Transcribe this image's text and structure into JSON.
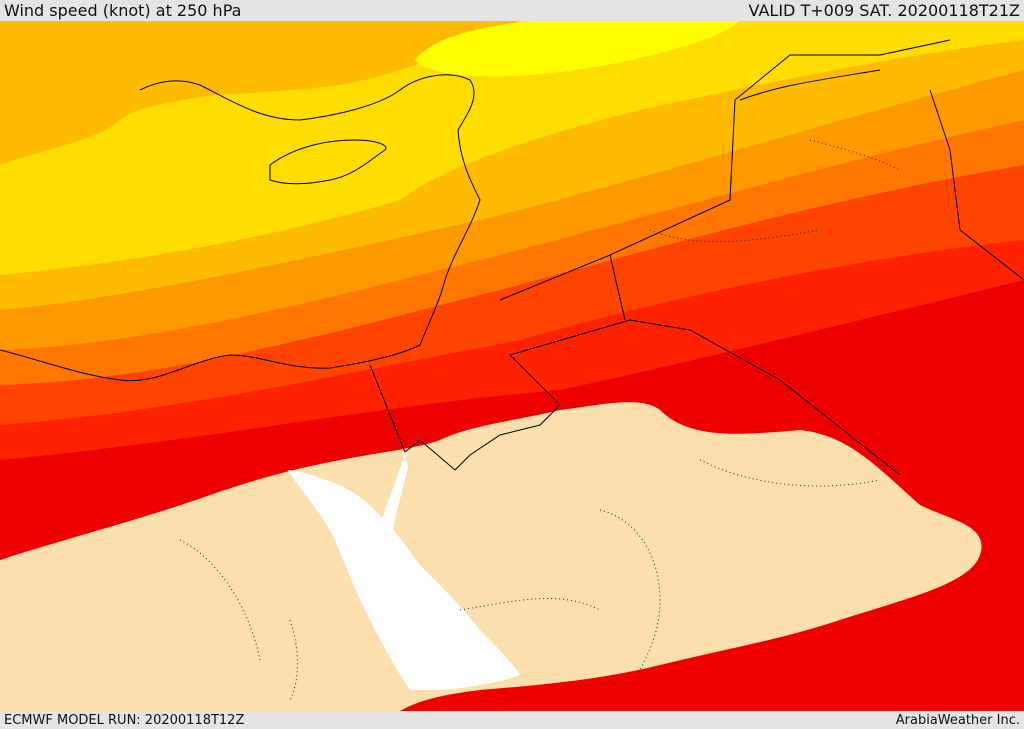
{
  "header": {
    "title": "Wind speed (knot) at 250 hPa",
    "valid_time": "VALID T+009 SAT. 20200118T21Z"
  },
  "footer": {
    "model_run": "ECMWF MODEL RUN: 20200118T12Z",
    "credit": "ArabiaWeather Inc."
  },
  "map": {
    "band_colors": [
      "#ffff00",
      "#ffdd00",
      "#ffbb00",
      "#ff9900",
      "#ff7700",
      "#ff4400",
      "#ff2200",
      "#ee0000",
      "#fbdfad"
    ],
    "sea_color": "#ffffff",
    "border_color": "#000000"
  }
}
